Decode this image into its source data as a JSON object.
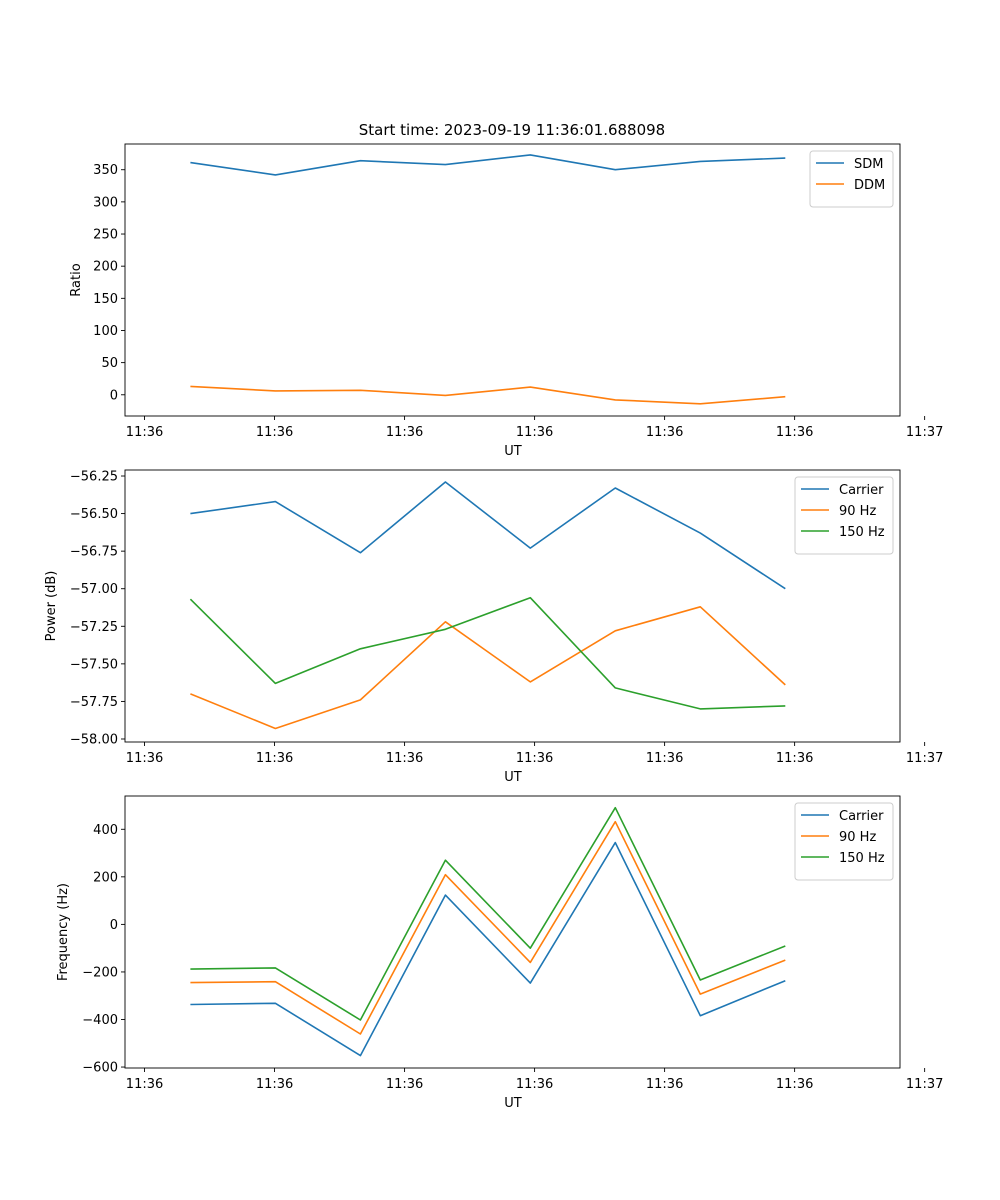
{
  "title": "Start time: 2023-09-19 11:36:01.688098",
  "colors": {
    "blue": "#1f77b4",
    "orange": "#ff7f0e",
    "green": "#2ca02c"
  },
  "chart_data": [
    {
      "type": "line",
      "title": "Start time: 2023-09-19 11:36:01.688098",
      "xlabel": "UT",
      "ylabel": "Ratio",
      "x": [
        1,
        2,
        3,
        4,
        5,
        6,
        7,
        8
      ],
      "xlim": [
        0.23,
        9.35
      ],
      "x_ticks": [
        0.46,
        1.99,
        3.52,
        5.05,
        6.58,
        8.11,
        9.64
      ],
      "x_tick_labels": [
        "11:36",
        "11:36",
        "11:36",
        "11:36",
        "11:36",
        "11:36",
        "11:37"
      ],
      "ylim": [
        -33,
        390
      ],
      "y_ticks": [
        0,
        50,
        100,
        150,
        200,
        250,
        300,
        350
      ],
      "y_tick_labels": [
        "0",
        "50",
        "100",
        "150",
        "200",
        "250",
        "300",
        "350"
      ],
      "legend": "top-right",
      "series": [
        {
          "name": "SDM",
          "color": "#1f77b4",
          "values": [
            361,
            342,
            364,
            358,
            373,
            350,
            363,
            368
          ]
        },
        {
          "name": "DDM",
          "color": "#ff7f0e",
          "values": [
            13,
            6,
            7,
            -1,
            12,
            -8,
            -14,
            -3
          ]
        }
      ]
    },
    {
      "type": "line",
      "xlabel": "UT",
      "ylabel": "Power (dB)",
      "x": [
        1,
        2,
        3,
        4,
        5,
        6,
        7,
        8
      ],
      "xlim": [
        0.23,
        9.35
      ],
      "x_ticks": [
        0.46,
        1.99,
        3.52,
        5.05,
        6.58,
        8.11,
        9.64
      ],
      "x_tick_labels": [
        "11:36",
        "11:36",
        "11:36",
        "11:36",
        "11:36",
        "11:36",
        "11:37"
      ],
      "ylim": [
        -58.02,
        -56.21
      ],
      "y_ticks": [
        -58.0,
        -57.75,
        -57.5,
        -57.25,
        -57.0,
        -56.75,
        -56.5,
        -56.25
      ],
      "y_tick_labels": [
        "−58.00",
        "−57.75",
        "−57.50",
        "−57.25",
        "−57.00",
        "−56.75",
        "−56.50",
        "−56.25"
      ],
      "legend": "top-right",
      "series": [
        {
          "name": "Carrier",
          "color": "#1f77b4",
          "values": [
            -56.5,
            -56.42,
            -56.76,
            -56.29,
            -56.73,
            -56.33,
            -56.63,
            -57.0
          ]
        },
        {
          "name": "90 Hz",
          "color": "#ff7f0e",
          "values": [
            -57.7,
            -57.93,
            -57.74,
            -57.22,
            -57.62,
            -57.28,
            -57.12,
            -57.64
          ]
        },
        {
          "name": "150 Hz",
          "color": "#2ca02c",
          "values": [
            -57.07,
            -57.63,
            -57.4,
            -57.27,
            -57.06,
            -57.66,
            -57.8,
            -57.78
          ]
        }
      ]
    },
    {
      "type": "line",
      "xlabel": "UT",
      "ylabel": "Frequency (Hz)",
      "x": [
        1,
        2,
        3,
        4,
        5,
        6,
        7,
        8
      ],
      "xlim": [
        0.23,
        9.35
      ],
      "x_ticks": [
        0.46,
        1.99,
        3.52,
        5.05,
        6.58,
        8.11,
        9.64
      ],
      "x_tick_labels": [
        "11:36",
        "11:36",
        "11:36",
        "11:36",
        "11:36",
        "11:36",
        "11:37"
      ],
      "ylim": [
        -604,
        540
      ],
      "y_ticks": [
        -600,
        -400,
        -200,
        0,
        200,
        400
      ],
      "y_tick_labels": [
        "−600",
        "−400",
        "−200",
        "0",
        "200",
        "400"
      ],
      "legend": "top-right",
      "series": [
        {
          "name": "Carrier",
          "color": "#1f77b4",
          "values": [
            -337,
            -332,
            -552,
            123,
            -247,
            344,
            -384,
            -237
          ]
        },
        {
          "name": "90 Hz",
          "color": "#ff7f0e",
          "values": [
            -245,
            -241,
            -461,
            209,
            -160,
            432,
            -293,
            -150
          ]
        },
        {
          "name": "150 Hz",
          "color": "#2ca02c",
          "values": [
            -188,
            -183,
            -402,
            270,
            -100,
            491,
            -234,
            -91
          ]
        }
      ]
    }
  ]
}
